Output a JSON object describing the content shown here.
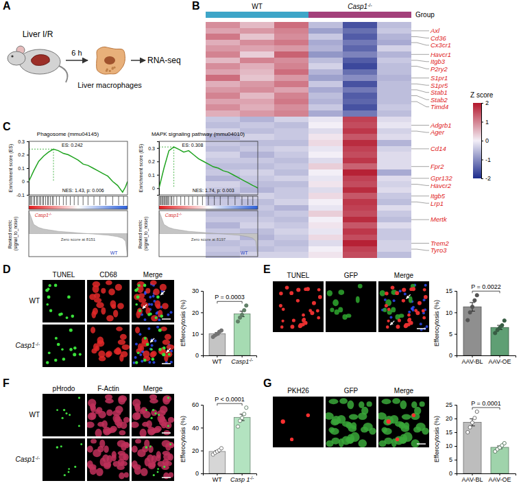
{
  "figure": {
    "panel_labels": [
      "A",
      "B",
      "C",
      "D",
      "E",
      "F",
      "G"
    ],
    "schematic": {
      "steps": [
        "Liver I/R",
        "Liver macrophages",
        "RNA-seq"
      ],
      "arrow_label": "6 h"
    },
    "micrographs": [
      {
        "channels": [
          "TUNEL",
          "CD68",
          "Merge"
        ],
        "rows": [
          "WT",
          "Casp1-/-"
        ]
      },
      {
        "channels": [
          "TUNEL",
          "GFP",
          "Merge"
        ]
      },
      {
        "channels": [
          "pHrodo",
          "F-Actin",
          "Merge"
        ],
        "rows": [
          "WT",
          "Casp1-/-"
        ]
      },
      {
        "channels": [
          "PKH26",
          "GFP",
          "Merge"
        ]
      }
    ]
  },
  "chart_data": [
    {
      "type": "heatmap",
      "groups": [
        {
          "name": "WT",
          "color": "#3ea5c8"
        },
        {
          "name": "Casp1-/-",
          "color": "#a3407a"
        }
      ],
      "annotations": [
        "Group"
      ],
      "categories": [
        null,
        "Axl",
        "Cd36",
        "Cx3cr1",
        null,
        "Havcr1",
        "Itgb3",
        "P2ry2",
        null,
        "S1pr1",
        "S1pr5",
        "Stab1",
        "Stab2",
        "Timd4",
        null,
        null,
        null,
        "Adgrb1",
        "Ager",
        null,
        null,
        "Cd14",
        null,
        null,
        "Fpr2",
        null,
        "Gpr132",
        "Havcr2",
        null,
        "Itgb5",
        "Lrp1",
        null,
        null,
        "Mertk",
        null,
        null,
        null,
        "Trem2",
        "Tyro3",
        null
      ],
      "values": [
        [
          0.9,
          0.5,
          1.2,
          -0.5,
          -1.6,
          -0.5
        ],
        [
          0.7,
          0.8,
          1.0,
          -0.8,
          -1.3,
          -0.4
        ],
        [
          1.1,
          0.4,
          0.9,
          -0.4,
          -1.5,
          -0.6
        ],
        [
          0.6,
          0.9,
          1.1,
          -0.7,
          -1.2,
          -0.7
        ],
        [
          0.8,
          0.7,
          0.8,
          -0.6,
          -1.4,
          -0.3
        ],
        [
          1.0,
          0.3,
          1.3,
          -0.9,
          -1.1,
          -0.6
        ],
        [
          0.5,
          1.0,
          0.9,
          -0.5,
          -1.5,
          -0.4
        ],
        [
          0.9,
          0.6,
          1.0,
          -0.3,
          -1.7,
          -0.5
        ],
        [
          0.7,
          0.5,
          1.2,
          -0.6,
          -1.3,
          -0.5
        ],
        [
          1.2,
          0.4,
          0.8,
          -0.8,
          -1.0,
          -0.6
        ],
        [
          0.6,
          0.8,
          1.1,
          -0.4,
          -1.6,
          -0.5
        ],
        [
          0.8,
          0.9,
          0.7,
          -0.7,
          -1.2,
          -0.5
        ],
        [
          1.0,
          0.5,
          1.0,
          -0.5,
          -1.5,
          -0.5
        ],
        [
          0.7,
          0.7,
          1.1,
          -0.6,
          -1.4,
          -0.5
        ],
        [
          0.9,
          0.6,
          0.9,
          -0.4,
          -1.6,
          -0.4
        ],
        [
          0.6,
          0.8,
          1.0,
          -0.7,
          -1.2,
          -0.5
        ],
        [
          -0.4,
          -0.6,
          -0.3,
          -0.1,
          1.6,
          -0.2
        ],
        [
          -0.5,
          -0.4,
          -0.5,
          0.0,
          1.5,
          -0.1
        ],
        [
          -0.3,
          -0.5,
          -0.4,
          -0.2,
          1.7,
          -0.3
        ],
        [
          -0.6,
          -0.3,
          -0.4,
          0.1,
          1.4,
          -0.2
        ],
        [
          -0.4,
          -0.5,
          -0.5,
          0.2,
          1.8,
          -0.6
        ],
        [
          -0.5,
          -0.4,
          -0.3,
          -0.1,
          1.6,
          -0.3
        ],
        [
          -0.3,
          -0.6,
          -0.4,
          0.0,
          1.5,
          -0.2
        ],
        [
          -0.4,
          -0.4,
          -0.5,
          -0.2,
          1.7,
          -0.2
        ],
        [
          -0.5,
          -0.5,
          -0.4,
          0.3,
          1.3,
          -0.2
        ],
        [
          -0.4,
          -0.3,
          -0.5,
          0.0,
          1.9,
          -0.7
        ],
        [
          -0.6,
          -0.4,
          -0.3,
          -0.1,
          1.6,
          -0.2
        ],
        [
          -0.3,
          -0.5,
          -0.5,
          0.1,
          1.5,
          -0.3
        ],
        [
          -0.4,
          -0.6,
          -0.4,
          -0.2,
          1.8,
          -0.2
        ],
        [
          -0.5,
          -0.3,
          -0.4,
          0.2,
          1.4,
          -0.4
        ],
        [
          -0.4,
          -0.5,
          -0.3,
          0.0,
          1.7,
          -0.5
        ],
        [
          -0.3,
          -0.4,
          -0.6,
          -0.1,
          1.6,
          -0.2
        ],
        [
          -0.5,
          -0.5,
          -0.4,
          0.3,
          1.5,
          -0.4
        ],
        [
          -0.4,
          -0.4,
          -0.5,
          0.0,
          1.8,
          -0.5
        ],
        [
          -0.6,
          -0.3,
          -0.4,
          0.1,
          1.4,
          -0.2
        ],
        [
          -0.4,
          -0.5,
          -0.3,
          -0.1,
          1.7,
          -0.4
        ],
        [
          -0.3,
          -0.6,
          -0.4,
          0.2,
          1.5,
          -0.4
        ],
        [
          -0.5,
          -0.4,
          -0.5,
          -0.2,
          1.9,
          -0.3
        ],
        [
          -0.4,
          -0.5,
          -0.4,
          0.0,
          1.6,
          -0.3
        ],
        [
          -0.5,
          -0.3,
          -0.3,
          0.1,
          1.5,
          -0.5
        ]
      ],
      "colorbar": {
        "title": "Z score",
        "range": [
          -2,
          2
        ],
        "ticks": [
          2,
          1,
          0,
          -1,
          -2
        ]
      }
    },
    {
      "type": "line",
      "title": "Phagosome (mmu04145)",
      "ylabel": "Enrichment score (ES)",
      "metric_label": "Ranked metric (signal_to_noise)",
      "color": "#1fa31f",
      "tick_labels": "y",
      "x": [
        0,
        5,
        10,
        15,
        20,
        25,
        30,
        35,
        40,
        45,
        50,
        55,
        60,
        65,
        70,
        75,
        80,
        85,
        90,
        95,
        98,
        100
      ],
      "values": [
        0,
        0.08,
        0.15,
        0.19,
        0.22,
        0.242,
        0.23,
        0.21,
        0.2,
        0.18,
        0.16,
        0.13,
        0.12,
        0.1,
        0.08,
        0.06,
        0.04,
        0,
        -0.03,
        -0.08,
        -0.04,
        0
      ],
      "metric": [
        3,
        1.2,
        0.8,
        0.6,
        0.5,
        0.4,
        0.3,
        0.25,
        0.2,
        0.15,
        0.1,
        0.05,
        0,
        -0.05,
        -0.1,
        -0.15,
        -0.2,
        -0.3,
        -0.4,
        -0.6,
        -1,
        -3
      ],
      "metric_lim": [
        -3,
        3
      ],
      "hits": [
        1,
        2,
        3,
        5,
        6,
        8,
        9,
        11,
        12,
        14,
        15,
        17,
        19,
        20,
        22,
        24,
        25,
        28,
        31,
        35,
        38,
        42,
        46,
        50,
        55,
        60,
        66,
        72,
        78,
        85,
        91,
        96
      ],
      "xlim": [
        0,
        100
      ],
      "ylim": [
        -0.1,
        0.3
      ],
      "yticks": [
        -0.1,
        0,
        0.1,
        0.2,
        0.3
      ],
      "annotations": [
        "ES: 0.242",
        "NES: 1.43, p: 0.006",
        "Zero score at 8151"
      ],
      "group_labels": [
        "Casp1-/-",
        "WT"
      ]
    },
    {
      "type": "line",
      "title": "MAPK signaling pathway (mmu04010)",
      "ylabel": "Enrichment score (ES)",
      "metric_label": "Ranked metric (signal_to_noise)",
      "color": "#1fa31f",
      "tick_labels": "y",
      "x": [
        0,
        5,
        10,
        15,
        20,
        25,
        30,
        35,
        40,
        45,
        50,
        55,
        60,
        65,
        70,
        75,
        80,
        85,
        90,
        95,
        98,
        100
      ],
      "values": [
        0,
        0.15,
        0.28,
        0.308,
        0.29,
        0.27,
        0.28,
        0.25,
        0.22,
        0.2,
        0.18,
        0.16,
        0.15,
        0.13,
        0.12,
        0.1,
        0.08,
        0.06,
        0.04,
        0.02,
        0.01,
        0
      ],
      "metric": [
        3,
        1.2,
        0.8,
        0.6,
        0.5,
        0.4,
        0.3,
        0.25,
        0.2,
        0.15,
        0.1,
        0.05,
        0,
        -0.05,
        -0.1,
        -0.15,
        -0.2,
        -0.3,
        -0.4,
        -0.6,
        -1,
        -3
      ],
      "metric_lim": [
        -3,
        3
      ],
      "hits": [
        1,
        2,
        3,
        4,
        5,
        6,
        7,
        8,
        9,
        10,
        12,
        13,
        15,
        18,
        22,
        26,
        30,
        34,
        39,
        44,
        50,
        56,
        62,
        70,
        77,
        84,
        90,
        95
      ],
      "xlim": [
        0,
        100
      ],
      "ylim": [
        -0.05,
        0.35
      ],
      "yticks": [
        0,
        0.1,
        0.2,
        0.3
      ],
      "annotations": [
        "ES: 0.308",
        "NES: 1.74, p: 0.003",
        "Zero score at 8197"
      ],
      "group_labels": [
        "Casp1-/-",
        "WT"
      ]
    },
    {
      "type": "bar",
      "categories": [
        "WT",
        "Casp1-/-"
      ],
      "values": [
        10.1,
        19.3
      ],
      "errors": [
        0.5,
        1.3
      ],
      "points": [
        [
          8.6,
          9.4,
          10.0,
          11.0,
          11.6
        ],
        [
          15.8,
          17.6,
          18.9,
          21.0,
          23.2
        ]
      ],
      "colors": [
        "#c4c4c4",
        "#a6dbb2"
      ],
      "marker": "filled",
      "ylabel": "Efferocytosis (%)",
      "ylim": [
        0,
        30
      ],
      "yticks": [
        0,
        10,
        20,
        30
      ],
      "annotations": [
        "P = 0.0003"
      ]
    },
    {
      "type": "bar",
      "categories": [
        "AAV-BL",
        "AAV-OE"
      ],
      "values": [
        11.3,
        6.5
      ],
      "errors": [
        1.0,
        0.5
      ],
      "points": [
        [
          8.2,
          10.0,
          11.3,
          12.8,
          14.0
        ],
        [
          5.2,
          5.9,
          6.4,
          7.0,
          8.1
        ]
      ],
      "colors": [
        "#8f8f8f",
        "#5f9f74"
      ],
      "marker": "filled",
      "ylabel": "Efferocytosis (%)",
      "ylim": [
        0,
        15
      ],
      "yticks": [
        0,
        5,
        10,
        15
      ],
      "annotations": [
        "P = 0.0022"
      ]
    },
    {
      "type": "bar",
      "categories": [
        "WT",
        "Casp 1-/-"
      ],
      "values": [
        19.2,
        49.0
      ],
      "errors": [
        0.9,
        2.8
      ],
      "points": [
        [
          16.5,
          18.0,
          19.2,
          20.3,
          22.0
        ],
        [
          41.0,
          46.0,
          48.5,
          52.0,
          57.5
        ]
      ],
      "colors": [
        "#d6d6d6",
        "#b3e3c0"
      ],
      "marker": "open",
      "ylabel": "Efferocytosis (%)",
      "ylim": [
        0,
        60
      ],
      "yticks": [
        0,
        20,
        40,
        60
      ],
      "annotations": [
        "P < 0.0001"
      ]
    },
    {
      "type": "bar",
      "categories": [
        "AAV-BL",
        "AAV-OE"
      ],
      "values": [
        18.6,
        9.5
      ],
      "errors": [
        1.3,
        0.5
      ],
      "points": [
        [
          15.0,
          16.8,
          18.5,
          20.2,
          22.5
        ],
        [
          8.0,
          8.8,
          9.4,
          10.2,
          11.0
        ]
      ],
      "colors": [
        "#bdbdbd",
        "#9fd3ab"
      ],
      "marker": "open",
      "ylabel": "Efferocytosis (%)",
      "ylim": [
        0,
        25
      ],
      "yticks": [
        0,
        5,
        10,
        15,
        20,
        25
      ],
      "annotations": [
        "P = 0.0001"
      ]
    }
  ]
}
